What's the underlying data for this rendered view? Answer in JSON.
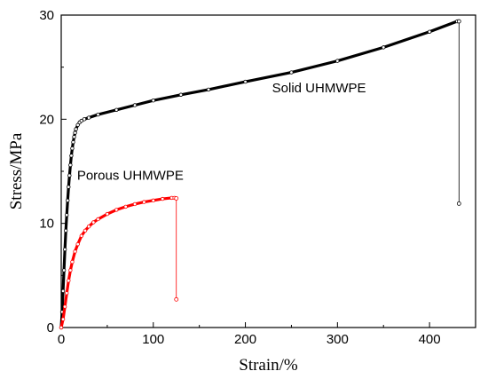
{
  "chart_data": {
    "type": "line",
    "xlabel": "Strain/%",
    "ylabel": "Stress/MPa",
    "xlim": [
      0,
      450
    ],
    "ylim": [
      0,
      30
    ],
    "x_ticks": [
      0,
      100,
      200,
      300,
      400
    ],
    "y_ticks": [
      0,
      10,
      20,
      30
    ],
    "grid": false,
    "series": [
      {
        "name": "Solid UHMWPE",
        "color": "#000000",
        "label_at": [
          280,
          22.6
        ],
        "points": [
          [
            0,
            0
          ],
          [
            1,
            1.5
          ],
          [
            2,
            3.5
          ],
          [
            3,
            5.5
          ],
          [
            4,
            7.5
          ],
          [
            5,
            9.3
          ],
          [
            6,
            10.8
          ],
          [
            7,
            12.2
          ],
          [
            8,
            13.5
          ],
          [
            9,
            14.6
          ],
          [
            10,
            15.6
          ],
          [
            11,
            16.5
          ],
          [
            12,
            17.2
          ],
          [
            13,
            17.8
          ],
          [
            14,
            18.3
          ],
          [
            15,
            18.7
          ],
          [
            16,
            19.05
          ],
          [
            18,
            19.45
          ],
          [
            20,
            19.7
          ],
          [
            22,
            19.85
          ],
          [
            25,
            20
          ],
          [
            30,
            20.15
          ],
          [
            40,
            20.45
          ],
          [
            60,
            20.9
          ],
          [
            80,
            21.35
          ],
          [
            100,
            21.8
          ],
          [
            130,
            22.35
          ],
          [
            160,
            22.85
          ],
          [
            200,
            23.6
          ],
          [
            250,
            24.5
          ],
          [
            300,
            25.6
          ],
          [
            350,
            26.9
          ],
          [
            400,
            28.4
          ],
          [
            430,
            29.4
          ]
        ],
        "drop": [
          [
            432,
            29.4
          ],
          [
            432,
            11.9
          ]
        ]
      },
      {
        "name": "Porous UHMWPE",
        "color": "#ff0000",
        "label_at": [
          75,
          14.2
        ],
        "points": [
          [
            0,
            0
          ],
          [
            2,
            0.8
          ],
          [
            4,
            2
          ],
          [
            6,
            3.3
          ],
          [
            8,
            4.5
          ],
          [
            10,
            5.5
          ],
          [
            12,
            6.3
          ],
          [
            15,
            7.3
          ],
          [
            18,
            8.0
          ],
          [
            22,
            8.8
          ],
          [
            26,
            9.3
          ],
          [
            30,
            9.7
          ],
          [
            35,
            10.1
          ],
          [
            40,
            10.4
          ],
          [
            50,
            10.9
          ],
          [
            60,
            11.3
          ],
          [
            70,
            11.6
          ],
          [
            80,
            11.85
          ],
          [
            90,
            12.05
          ],
          [
            100,
            12.2
          ],
          [
            110,
            12.35
          ],
          [
            120,
            12.45
          ],
          [
            123,
            12.45
          ]
        ],
        "drop": [
          [
            125,
            12.4
          ],
          [
            125,
            2.7
          ]
        ]
      }
    ]
  }
}
